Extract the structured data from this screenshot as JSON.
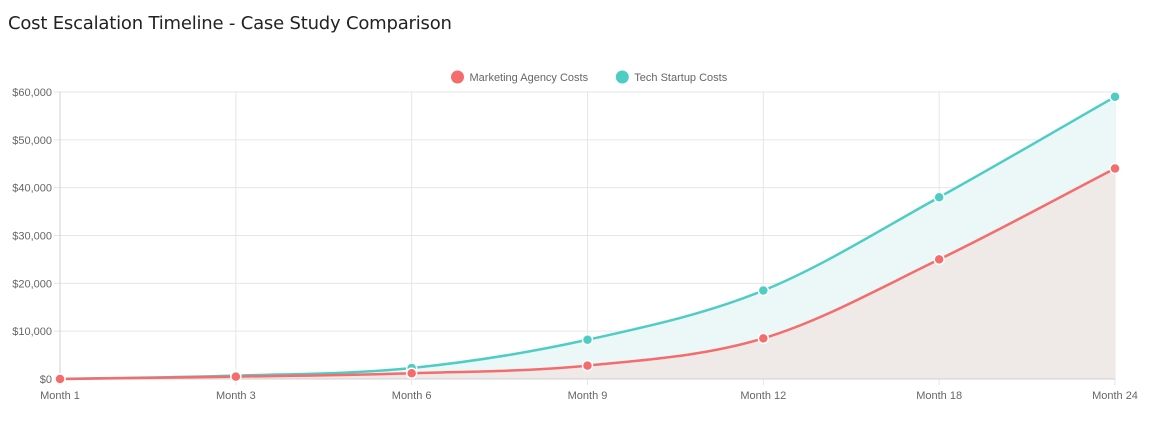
{
  "page": {
    "title": "Cost Escalation Timeline - Case Study Comparison"
  },
  "chart_data": {
    "type": "line",
    "title": "Cost Escalation Timeline - Case Study Comparison",
    "categories": [
      "Month 1",
      "Month 3",
      "Month 6",
      "Month 9",
      "Month 12",
      "Month 18",
      "Month 24"
    ],
    "y_ticks": [
      "$0",
      "$10,000",
      "$20,000",
      "$30,000",
      "$40,000",
      "$50,000",
      "$60,000"
    ],
    "ylim": [
      0,
      60000
    ],
    "grid": true,
    "legend_position": "top-center",
    "series": [
      {
        "name": "Marketing Agency Costs",
        "key": "marketing",
        "color": "#f56c6c",
        "fill": "#efe9e8",
        "values": [
          0,
          500,
          1200,
          2800,
          8500,
          25000,
          44000
        ]
      },
      {
        "name": "Tech Startup Costs",
        "key": "tech",
        "color": "#4ecdc4",
        "fill": "#ecf7f7",
        "values": [
          0,
          700,
          2300,
          8200,
          18500,
          38000,
          59000
        ]
      }
    ]
  }
}
